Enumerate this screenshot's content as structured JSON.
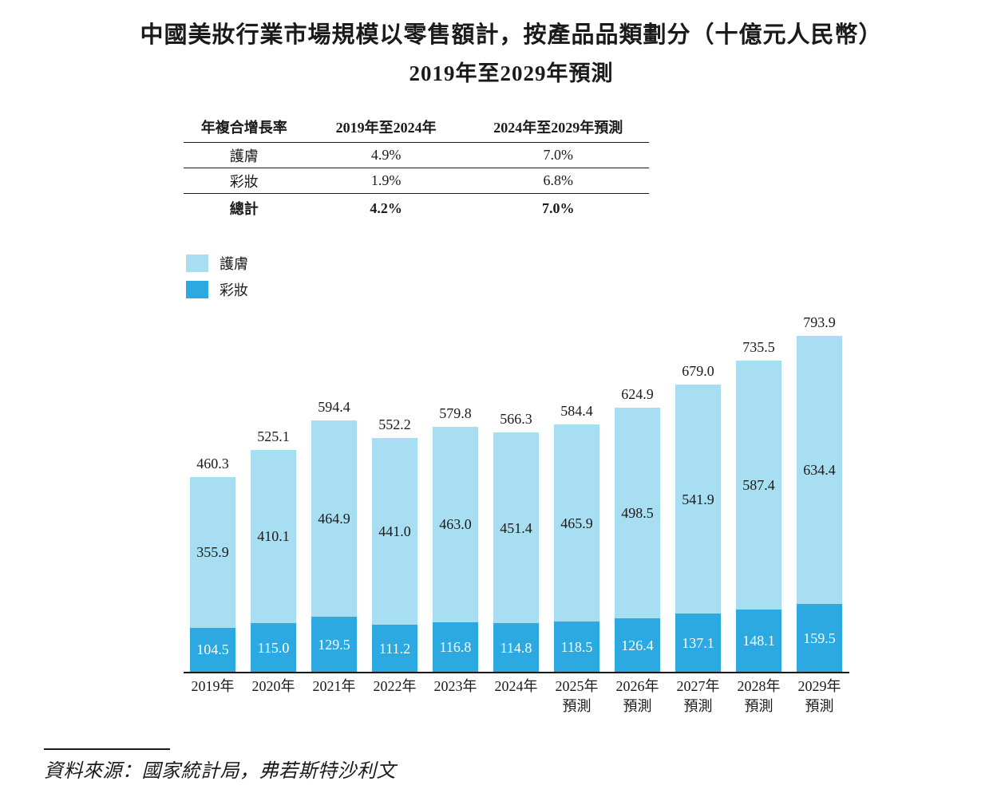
{
  "title": {
    "line1": "中國美妝行業市場規模以零售額計，按產品品類劃分（十億元人民幣）",
    "line2": "2019年至2029年預測"
  },
  "cagr_table": {
    "headers": [
      "年複合增長率",
      "2019年至2024年",
      "2024年至2029年預測"
    ],
    "rows": [
      {
        "label": "護膚",
        "v1": "4.9%",
        "v2": "7.0%"
      },
      {
        "label": "彩妝",
        "v1": "1.9%",
        "v2": "6.8%"
      },
      {
        "label": "總計",
        "v1": "4.2%",
        "v2": "7.0%"
      }
    ]
  },
  "legend": [
    {
      "label": "護膚",
      "color": "#A8DEF2"
    },
    {
      "label": "彩妝",
      "color": "#2BA9E0"
    }
  ],
  "chart_data": {
    "type": "bar",
    "stacked": true,
    "title": "中國美妝行業市場規模以零售額計，按產品品類劃分（十億元人民幣）2019年至2029年預測",
    "ylabel": "十億元人民幣",
    "categories": [
      "2019年",
      "2020年",
      "2021年",
      "2022年",
      "2023年",
      "2024年",
      "2025年\n預測",
      "2026年\n預測",
      "2027年\n預測",
      "2028年\n預測",
      "2029年\n預測"
    ],
    "series": [
      {
        "name": "護膚",
        "color": "#A8DEF2",
        "values": [
          355.9,
          410.1,
          464.9,
          441.0,
          463.0,
          451.4,
          465.9,
          498.5,
          541.9,
          587.4,
          634.4
        ]
      },
      {
        "name": "彩妝",
        "color": "#2BA9E0",
        "values": [
          104.5,
          115.0,
          129.5,
          111.2,
          116.8,
          114.8,
          118.5,
          126.4,
          137.1,
          148.1,
          159.5
        ]
      }
    ],
    "totals": [
      460.3,
      525.1,
      594.4,
      552.2,
      579.8,
      566.3,
      584.4,
      624.9,
      679.0,
      735.5,
      793.9
    ],
    "ylim": [
      0,
      800
    ],
    "grid": false,
    "legend_position": "top-left",
    "value_labels": true
  },
  "source": {
    "text": "資料來源：國家統計局，弗若斯特沙利文"
  }
}
